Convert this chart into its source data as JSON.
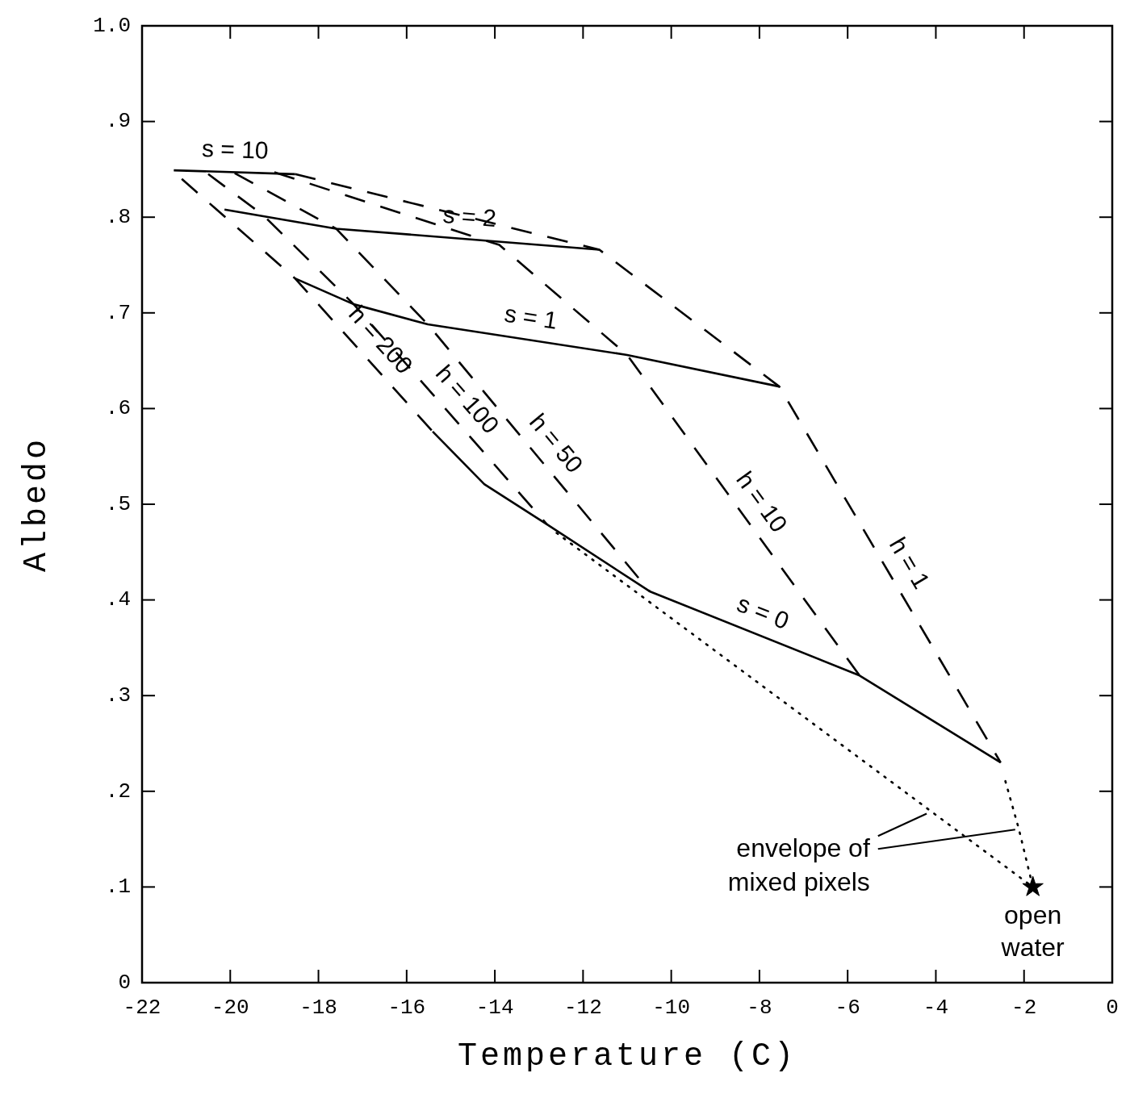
{
  "chart_data": {
    "type": "line",
    "xlabel": "Temperature (C)",
    "ylabel": "Albedo",
    "xlim": [
      -22,
      0
    ],
    "xticks": [
      -22,
      -20,
      -18,
      -16,
      -14,
      -12,
      -10,
      -8,
      -6,
      -4,
      -2,
      0
    ],
    "ylim": [
      0,
      1
    ],
    "yticks": [
      0,
      {
        "value": 0.1,
        "label": ".1"
      },
      {
        "value": 0.2,
        "label": ".2"
      },
      {
        "value": 0.3,
        "label": ".3"
      },
      {
        "value": 0.4,
        "label": ".4"
      },
      {
        "value": 0.5,
        "label": ".5"
      },
      {
        "value": 0.6,
        "label": ".6"
      },
      {
        "value": 0.7,
        "label": ".7"
      },
      {
        "value": 0.8,
        "label": ".8"
      },
      {
        "value": 0.9,
        "label": ".9"
      },
      {
        "value": 1,
        "label": "1.0"
      }
    ],
    "grid": false,
    "marker": "none",
    "series": [
      {
        "name": "s = 10",
        "color": "#000000",
        "line_style": "solid",
        "x": [
          -21.28,
          -18.53
        ],
        "values": [
          0.849,
          0.845
        ]
      },
      {
        "name": "s = 2",
        "color": "#000000",
        "line_style": "solid",
        "x": [
          -20.13,
          -17.6,
          -11.63
        ],
        "values": [
          0.808,
          0.788,
          0.766
        ]
      },
      {
        "name": "s = 1",
        "color": "#000000",
        "line_style": "solid",
        "x": [
          -18.53,
          -17.2,
          -15.52,
          -11.0,
          -7.55
        ],
        "values": [
          0.736,
          0.709,
          0.688,
          0.656,
          0.623
        ]
      },
      {
        "name": "s = 0",
        "color": "#000000",
        "line_style": "solid",
        "x": [
          -15.41,
          -14.24,
          -12.82,
          -10.49,
          -5.73,
          -2.53
        ],
        "values": [
          0.576,
          0.521,
          0.479,
          0.409,
          0.321,
          0.23
        ]
      },
      {
        "name": "h = 200",
        "color": "#000000",
        "line_style": "dashed",
        "x": [
          -21.1,
          -18.53,
          -15.41
        ],
        "values": [
          0.84,
          0.736,
          0.576
        ]
      },
      {
        "name": "h = 100",
        "color": "#000000",
        "line_style": "dashed",
        "x": [
          -20.5,
          -19.25,
          -17.2,
          -12.82
        ],
        "values": [
          0.845,
          0.802,
          0.709,
          0.479
        ]
      },
      {
        "name": "h = 50",
        "color": "#000000",
        "line_style": "dashed",
        "x": [
          -19.9,
          -17.6,
          -15.52,
          -10.49
        ],
        "values": [
          0.846,
          0.788,
          0.688,
          0.409
        ]
      },
      {
        "name": "h = 10",
        "color": "#000000",
        "line_style": "dashed",
        "x": [
          -19.0,
          -13.9,
          -11.0,
          -5.73
        ],
        "values": [
          0.847,
          0.771,
          0.656,
          0.321
        ]
      },
      {
        "name": "h = 1",
        "color": "#000000",
        "line_style": "dashed",
        "x": [
          -18.53,
          -11.63,
          -7.55,
          -2.53
        ],
        "values": [
          0.845,
          0.766,
          0.623,
          0.23
        ]
      },
      {
        "color": "#000000",
        "line_style": "dotted",
        "x": [
          -12.6,
          -1.8,
          -2.12,
          -2.45
        ],
        "values": [
          0.47,
          0.1,
          0.161,
          0.215
        ]
      },
      {
        "type": "scatter",
        "color": "#000000",
        "marker": "star",
        "x": [
          -1.8
        ],
        "values": [
          0.1
        ]
      }
    ],
    "annotations": [
      {
        "text": "envelope of mixed pixels",
        "x": -2.2,
        "y": 0.16
      },
      {
        "text": "open water",
        "x": -1.8,
        "y": 0.1
      }
    ]
  }
}
